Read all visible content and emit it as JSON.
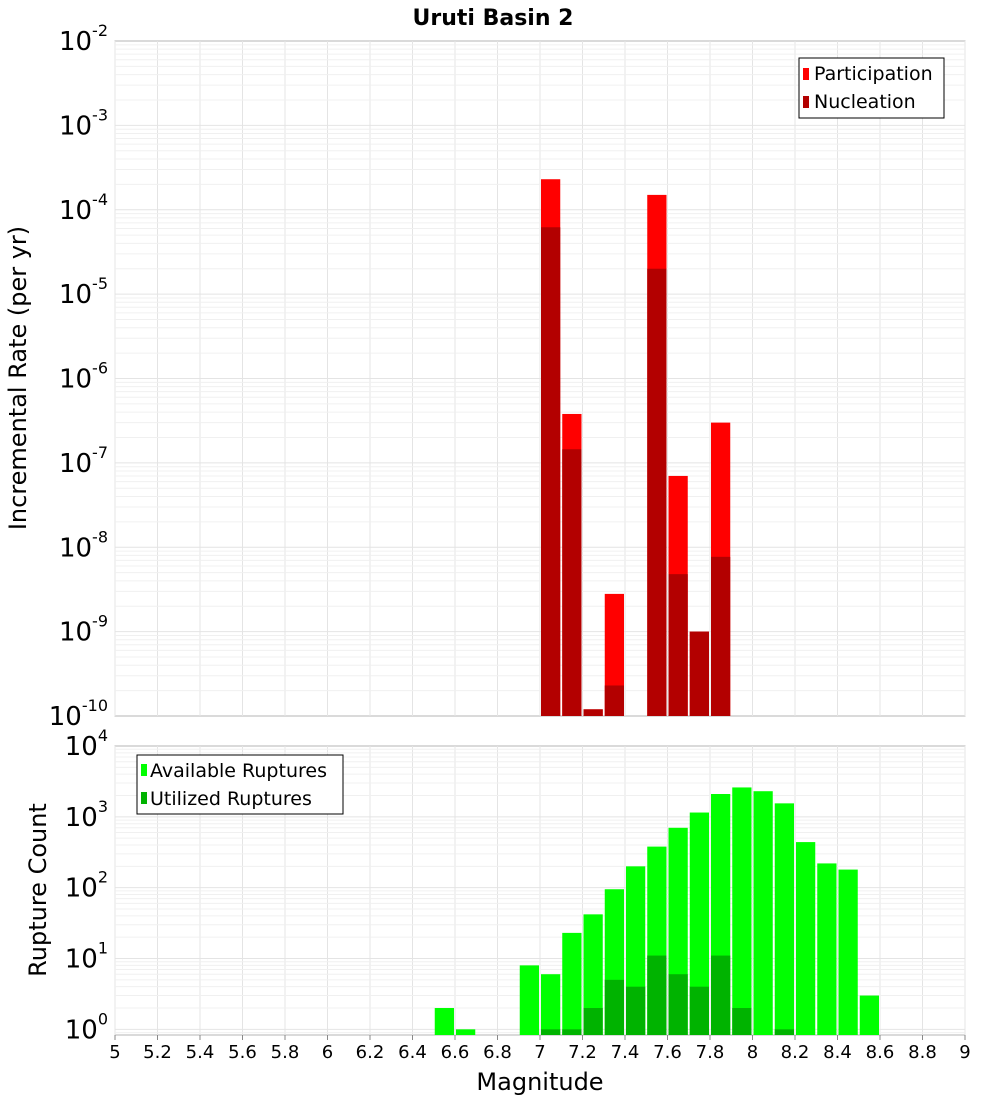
{
  "chart_data": [
    {
      "type": "bar",
      "title": "Uruti Basin 2",
      "xlabel": "",
      "ylabel": "Incremental Rate (per yr)",
      "yscale": "log",
      "ylim_exp": [
        -10,
        -2
      ],
      "y_tick_exponents": [
        "-10",
        "-9",
        "-8",
        "-7",
        "-6",
        "-5",
        "-4",
        "-3",
        "-2"
      ],
      "xlim": [
        5,
        9
      ],
      "bin_width": 0.1,
      "legend": {
        "position": "top-right",
        "entries": [
          {
            "name": "Participation",
            "color": "#ff0000"
          },
          {
            "name": "Nucleation",
            "color": "#b30000"
          }
        ]
      },
      "series": [
        {
          "name": "Participation",
          "color": "#ff0000",
          "x": [
            7.05,
            7.15,
            7.25,
            7.35,
            7.55,
            7.65,
            7.75,
            7.85
          ],
          "values": [
            0.00023,
            3.8e-07,
            1.2e-10,
            2.8e-09,
            0.00015,
            7e-08,
            1e-09,
            3e-07
          ]
        },
        {
          "name": "Nucleation",
          "color": "#b30000",
          "x": [
            7.05,
            7.15,
            7.25,
            7.35,
            7.55,
            7.65,
            7.75,
            7.85
          ],
          "values": [
            6.2e-05,
            1.45e-07,
            1.2e-10,
            2.3e-10,
            2e-05,
            4.8e-09,
            1e-09,
            7.7e-09
          ]
        }
      ]
    },
    {
      "type": "bar",
      "title": "",
      "xlabel": "Magnitude",
      "ylabel": "Rupture Count",
      "yscale": "log",
      "ylim_exp": [
        -0.08,
        4
      ],
      "y_tick_exponents": [
        "0",
        "1",
        "2",
        "3",
        "4"
      ],
      "xlim": [
        5,
        9
      ],
      "bin_width": 0.1,
      "x_ticks": [
        "5",
        "5.2",
        "5.4",
        "5.6",
        "5.8",
        "6",
        "6.2",
        "6.4",
        "6.6",
        "6.8",
        "7",
        "7.2",
        "7.4",
        "7.6",
        "7.8",
        "8",
        "8.2",
        "8.4",
        "8.6",
        "8.8",
        "9"
      ],
      "legend": {
        "position": "top-left",
        "entries": [
          {
            "name": "Available Ruptures",
            "color": "#00ff00"
          },
          {
            "name": "Utilized Ruptures",
            "color": "#00b300"
          }
        ]
      },
      "series": [
        {
          "name": "Available Ruptures",
          "color": "#00ff00",
          "x": [
            6.55,
            6.65,
            6.95,
            7.05,
            7.15,
            7.25,
            7.35,
            7.45,
            7.55,
            7.65,
            7.75,
            7.85,
            7.95,
            8.05,
            8.15,
            8.25,
            8.35,
            8.45,
            8.55
          ],
          "values": [
            2,
            1,
            8,
            6,
            23,
            42,
            95,
            200,
            380,
            700,
            1150,
            2100,
            2600,
            2300,
            1550,
            440,
            220,
            180,
            3
          ]
        },
        {
          "name": "Utilized Ruptures",
          "color": "#00b300",
          "x": [
            7.05,
            7.15,
            7.25,
            7.35,
            7.45,
            7.55,
            7.65,
            7.75,
            7.85,
            7.95,
            8.15
          ],
          "values": [
            1,
            1,
            2,
            5,
            4,
            11,
            6,
            4,
            11,
            2,
            1
          ]
        }
      ]
    }
  ]
}
